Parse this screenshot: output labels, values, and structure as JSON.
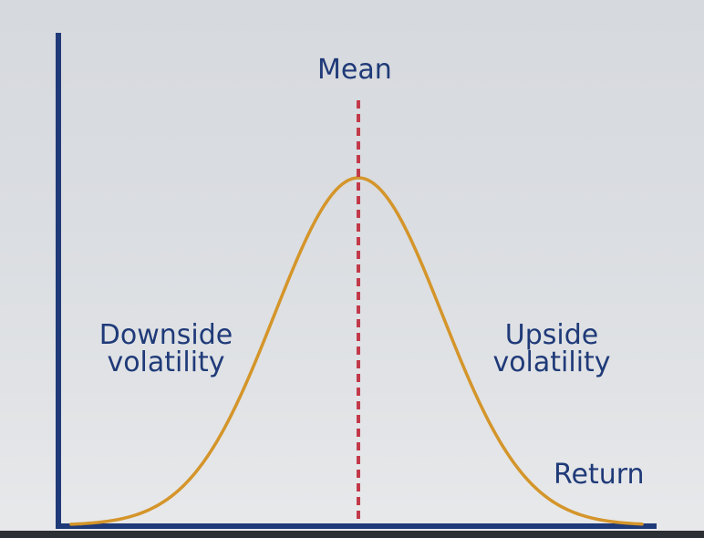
{
  "labels": {
    "mean": "Mean",
    "downside_line1": "Downside",
    "downside_line2": "volatility",
    "upside_line1": "Upside",
    "upside_line2": "volatility",
    "return": "Return"
  },
  "colors": {
    "axis": "#1f3a78",
    "curve": "#d4952a",
    "mean_line": "#c23a4a",
    "text": "#1f3a78"
  }
}
